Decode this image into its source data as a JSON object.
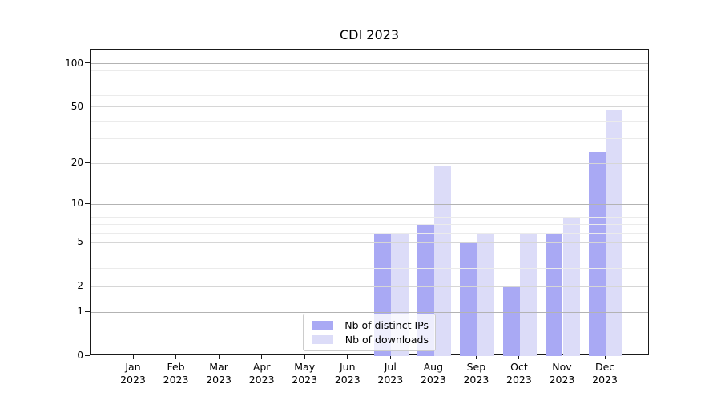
{
  "chart_data": {
    "type": "bar",
    "title": "CDI 2023",
    "year": "2023",
    "categories": [
      "Jan",
      "Feb",
      "Mar",
      "Apr",
      "May",
      "Jun",
      "Jul",
      "Aug",
      "Sep",
      "Oct",
      "Nov",
      "Dec"
    ],
    "series": [
      {
        "key": "distinct-ips",
        "name": "Nb of distinct IPs",
        "color": "#a9a9f4",
        "values": [
          0,
          0,
          0,
          0,
          0,
          0,
          6,
          7,
          5,
          2,
          6,
          24
        ]
      },
      {
        "key": "downloads",
        "name": "Nb of downloads",
        "color": "#dcdcf8",
        "values": [
          0,
          0,
          0,
          0,
          0,
          0,
          6,
          19,
          6,
          6,
          8,
          48
        ]
      }
    ],
    "yscale": "log1p",
    "ylim": [
      0,
      125
    ],
    "yticks_labeled": [
      0,
      1,
      2,
      5,
      10,
      20,
      50,
      100
    ],
    "yticks_major": [
      1,
      10,
      100
    ],
    "yticks_mid": [
      2,
      5,
      20,
      50
    ],
    "yticks_minor": [
      3,
      4,
      6,
      7,
      8,
      9,
      30,
      40,
      60,
      70,
      80,
      90
    ],
    "grid": "horizontal",
    "legend_position": "lower center",
    "colors": {
      "grid_major": "#b3b3b3",
      "grid_mid": "#d6d6d6",
      "grid_minor": "#ebebeb",
      "axis": "#1a1a1a"
    }
  }
}
